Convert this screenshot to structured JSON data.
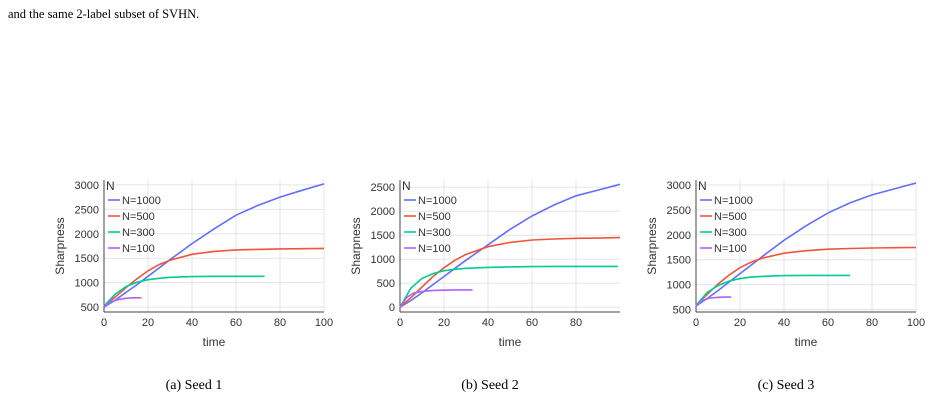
{
  "header_caption": {
    "line2": "and the same 2-label subset of SVHN."
  },
  "chart_data": [
    {
      "type": "line",
      "caption": "(a) Seed 1",
      "xlabel": "time",
      "ylabel": "Sharpness",
      "legend_title": "N",
      "legend_position": "top-left",
      "grid": true,
      "xlim": [
        0,
        100
      ],
      "ylim": [
        400,
        3100
      ],
      "xticks": [
        0,
        20,
        40,
        60,
        80,
        100
      ],
      "yticks": [
        500,
        1000,
        1500,
        2000,
        2500,
        3000
      ],
      "series": [
        {
          "name": "N=1000",
          "color": "#636efa",
          "x": [
            0,
            5,
            10,
            15,
            20,
            25,
            30,
            40,
            50,
            60,
            70,
            80,
            90,
            100
          ],
          "y": [
            500,
            640,
            800,
            960,
            1130,
            1300,
            1470,
            1800,
            2100,
            2380,
            2580,
            2750,
            2890,
            3020
          ]
        },
        {
          "name": "N=500",
          "color": "#ef553b",
          "x": [
            0,
            5,
            10,
            15,
            20,
            25,
            30,
            40,
            50,
            60,
            70,
            80,
            90,
            100
          ],
          "y": [
            520,
            700,
            900,
            1080,
            1240,
            1370,
            1460,
            1580,
            1640,
            1670,
            1680,
            1690,
            1695,
            1700
          ]
        },
        {
          "name": "N=300",
          "color": "#00cc96",
          "x": [
            0,
            5,
            10,
            15,
            20,
            25,
            30,
            40,
            50,
            60,
            73
          ],
          "y": [
            520,
            760,
            920,
            1010,
            1060,
            1090,
            1110,
            1125,
            1130,
            1130,
            1130
          ]
        },
        {
          "name": "N=100",
          "color": "#ab63fa",
          "x": [
            0,
            3,
            6,
            10,
            13,
            17
          ],
          "y": [
            520,
            600,
            650,
            680,
            690,
            690
          ]
        }
      ]
    },
    {
      "type": "line",
      "caption": "(b) Seed 2",
      "xlabel": "time",
      "ylabel": "Sharpness",
      "legend_title": "N",
      "legend_position": "top-left",
      "grid": true,
      "xlim": [
        0,
        100
      ],
      "ylim": [
        -100,
        2650
      ],
      "xticks": [
        0,
        20,
        40,
        60,
        80
      ],
      "yticks": [
        0,
        500,
        1000,
        1500,
        2000,
        2500
      ],
      "series": [
        {
          "name": "N=1000",
          "color": "#636efa",
          "x": [
            0,
            5,
            10,
            15,
            20,
            25,
            30,
            40,
            50,
            60,
            70,
            80,
            90,
            100
          ],
          "y": [
            0,
            140,
            300,
            470,
            640,
            810,
            980,
            1300,
            1620,
            1900,
            2130,
            2320,
            2440,
            2560
          ]
        },
        {
          "name": "N=500",
          "color": "#ef553b",
          "x": [
            0,
            5,
            10,
            15,
            20,
            25,
            30,
            40,
            50,
            60,
            70,
            80,
            90,
            100
          ],
          "y": [
            0,
            200,
            420,
            640,
            820,
            980,
            1100,
            1260,
            1350,
            1400,
            1420,
            1435,
            1440,
            1450
          ]
        },
        {
          "name": "N=300",
          "color": "#00cc96",
          "x": [
            0,
            5,
            10,
            15,
            20,
            25,
            30,
            40,
            50,
            60,
            70,
            80,
            99
          ],
          "y": [
            0,
            400,
            600,
            700,
            760,
            790,
            810,
            830,
            840,
            845,
            850,
            850,
            850
          ]
        },
        {
          "name": "N=100",
          "color": "#ab63fa",
          "x": [
            0,
            3,
            6,
            10,
            15,
            20,
            25,
            33
          ],
          "y": [
            0,
            200,
            290,
            330,
            350,
            355,
            360,
            360
          ]
        }
      ]
    },
    {
      "type": "line",
      "caption": "(c) Seed 3",
      "xlabel": "time",
      "ylabel": "Sharpness",
      "legend_title": "N",
      "legend_position": "top-left",
      "grid": true,
      "xlim": [
        0,
        100
      ],
      "ylim": [
        450,
        3100
      ],
      "xticks": [
        0,
        20,
        40,
        60,
        80,
        100
      ],
      "yticks": [
        500,
        1000,
        1500,
        2000,
        2500,
        3000
      ],
      "series": [
        {
          "name": "N=1000",
          "color": "#636efa",
          "x": [
            0,
            5,
            10,
            15,
            20,
            25,
            30,
            40,
            50,
            60,
            70,
            80,
            90,
            100
          ],
          "y": [
            570,
            720,
            880,
            1050,
            1220,
            1390,
            1560,
            1890,
            2180,
            2440,
            2640,
            2800,
            2920,
            3040
          ]
        },
        {
          "name": "N=500",
          "color": "#ef553b",
          "x": [
            0,
            5,
            10,
            15,
            20,
            25,
            30,
            40,
            50,
            60,
            70,
            80,
            90,
            100
          ],
          "y": [
            580,
            800,
            1010,
            1190,
            1340,
            1450,
            1530,
            1630,
            1680,
            1710,
            1725,
            1735,
            1740,
            1745
          ]
        },
        {
          "name": "N=300",
          "color": "#00cc96",
          "x": [
            0,
            5,
            10,
            15,
            20,
            25,
            30,
            40,
            50,
            60,
            70
          ],
          "y": [
            580,
            840,
            980,
            1070,
            1120,
            1150,
            1165,
            1180,
            1185,
            1185,
            1185
          ]
        },
        {
          "name": "N=100",
          "color": "#ab63fa",
          "x": [
            0,
            3,
            6,
            10,
            13,
            16
          ],
          "y": [
            580,
            680,
            730,
            745,
            750,
            750
          ]
        }
      ]
    }
  ]
}
